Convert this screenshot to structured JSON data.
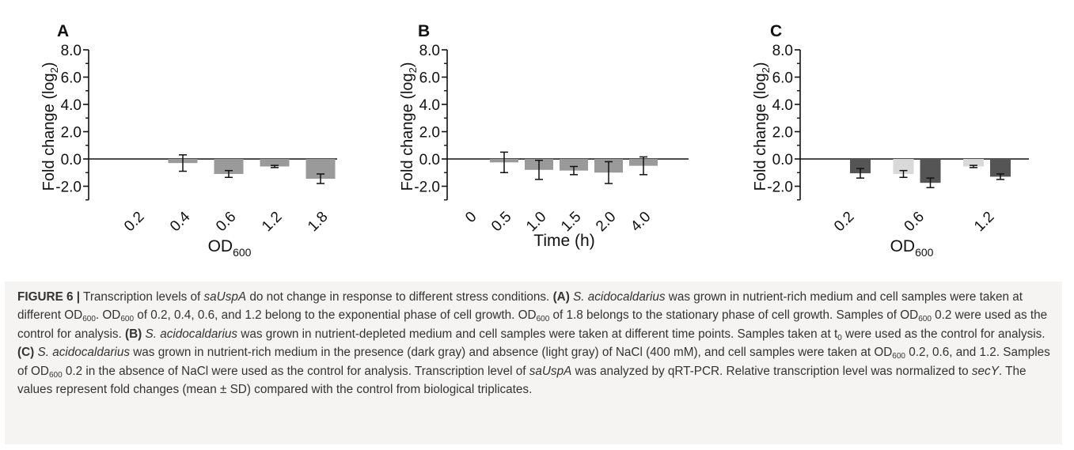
{
  "chart_data": [
    {
      "type": "bar",
      "panel_label": "A",
      "ylabel": "Fold change (log2)",
      "xlabel": "OD600",
      "ylim": [
        -3.0,
        8.0
      ],
      "yticks": [
        "8.0",
        "6.0",
        "4.0",
        "2.0",
        "0.0",
        "-2.0"
      ],
      "categories": [
        "0.2",
        "0.4",
        "0.6",
        "1.2",
        "1.8"
      ],
      "series": [
        {
          "color": "#9a9a9a",
          "values": [
            0.0,
            -0.3,
            -1.1,
            -0.55,
            -1.45
          ],
          "errors": [
            0.0,
            0.6,
            0.25,
            0.08,
            0.35
          ]
        }
      ],
      "grid": false
    },
    {
      "type": "bar",
      "panel_label": "B",
      "ylabel": "Fold change (log2)",
      "xlabel": "Time (h)",
      "ylim": [
        -3.0,
        8.0
      ],
      "yticks": [
        "8.0",
        "6.0",
        "4.0",
        "2.0",
        "0.0",
        "-2.0"
      ],
      "categories": [
        "0",
        "0.5",
        "1.0",
        "1.5",
        "2.0",
        "4.0"
      ],
      "series": [
        {
          "color": "#9a9a9a",
          "values": [
            0.0,
            -0.25,
            -0.8,
            -0.85,
            -1.0,
            -0.5
          ],
          "errors": [
            0.0,
            0.75,
            0.7,
            0.3,
            0.8,
            0.65
          ]
        }
      ],
      "grid": false
    },
    {
      "type": "bar",
      "panel_label": "C",
      "ylabel": "Fold change (log2)",
      "xlabel": "OD600",
      "ylim": [
        -3.0,
        8.0
      ],
      "yticks": [
        "8.0",
        "6.0",
        "4.0",
        "2.0",
        "0.0",
        "-2.0"
      ],
      "categories": [
        "0.2",
        "0.6",
        "1.2"
      ],
      "series": [
        {
          "color": "#d9d9d9",
          "values": [
            0.0,
            -1.1,
            -0.55
          ],
          "errors": [
            0.0,
            0.25,
            0.08
          ]
        },
        {
          "color": "#555555",
          "values": [
            -1.05,
            -1.75,
            -1.3
          ],
          "errors": [
            0.35,
            0.35,
            0.2
          ]
        }
      ],
      "grid": false
    }
  ],
  "caption": {
    "label": "FIGURE 6 |",
    "p1": " Transcription levels of ",
    "gene1": "saUspA",
    "p2": " do not change in response to different stress conditions. ",
    "ref_a": "(A)",
    "org_a": "S. acidocaldarius",
    "p3": " was grown in nutrient-rich medium and cell samples were taken at different OD",
    "sub600": "600",
    "p4": ". OD",
    "p5": " of 0.2, 0.4, 0.6, and 1.2 belong to the exponential phase of cell growth. OD",
    "p6": " of 1.8 belongs to the stationary phase of cell growth. Samples of OD",
    "p7": " 0.2 were used as the control for analysis. ",
    "ref_b": "(B)",
    "org_b": "S. acidocaldarius",
    "p8": " was grown in nutrient-depleted medium and cell samples were taken at different time points. Samples taken at t",
    "sub0": "0",
    "p9": " were used as the control for analysis. ",
    "ref_c": "(C)",
    "org_c": "S. acidocaldarius",
    "p10": " was grown in nutrient-rich medium in the presence (dark gray) and absence (light gray) of NaCl (400 mM), and cell samples were taken at OD",
    "p11": " 0.2, 0.6, and 1.2. Samples of OD",
    "p12": " 0.2 in the absence of NaCl were used as the control for analysis. Transcription level of ",
    "gene2": "saUspA",
    "p13": " was analyzed by qRT-PCR. Relative transcription level was normalized to ",
    "gene3": "secY",
    "p14": ". The values represent fold changes (mean ± SD) compared with the control from biological triplicates."
  }
}
